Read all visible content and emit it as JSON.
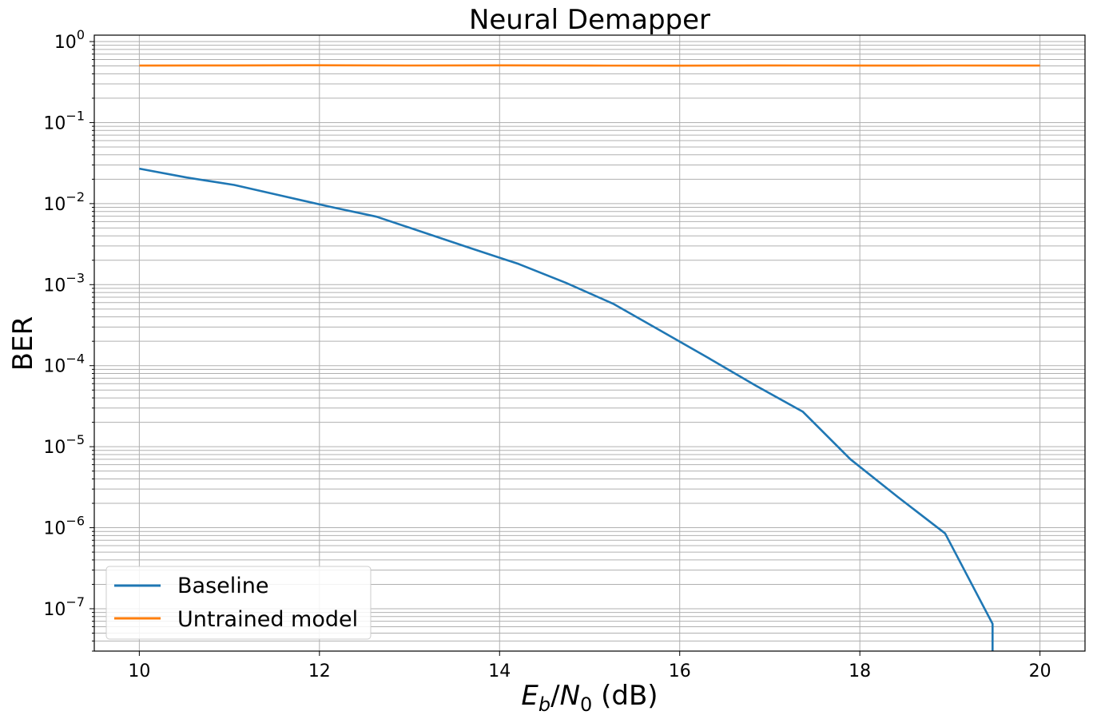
{
  "chart_data": {
    "type": "line",
    "title": "Neural Demapper",
    "xlabel": {
      "e": "E",
      "e_sub": "b",
      "slash": "/",
      "n": "N",
      "n_sub": "0",
      "unit": " (dB)"
    },
    "ylabel": "BER",
    "xlim": [
      9.5,
      20.5
    ],
    "ylim": [
      3e-08,
      1.2
    ],
    "yscale": "log",
    "grid": true,
    "legend_position": "lower-left",
    "x_ticks": [
      "10",
      "12",
      "14",
      "16",
      "18",
      "20"
    ],
    "y_ticks": [
      {
        "base": "10",
        "exp": "0"
      },
      {
        "base": "10",
        "exp": "−1"
      },
      {
        "base": "10",
        "exp": "−2"
      },
      {
        "base": "10",
        "exp": "−3"
      },
      {
        "base": "10",
        "exp": "−4"
      },
      {
        "base": "10",
        "exp": "−5"
      },
      {
        "base": "10",
        "exp": "−6"
      },
      {
        "base": "10",
        "exp": "−7"
      }
    ],
    "series": [
      {
        "name": "Baseline",
        "color": "#1f77b4",
        "x": [
          10.0,
          10.526,
          11.053,
          11.579,
          12.105,
          12.632,
          13.158,
          13.684,
          14.211,
          14.737,
          15.263,
          15.789,
          16.316,
          16.842,
          17.368,
          17.895,
          18.421,
          18.947,
          19.474
        ],
        "y": [
          0.027,
          0.021,
          0.017,
          0.0125,
          0.0092,
          0.0069,
          0.0044,
          0.0028,
          0.0018,
          0.00105,
          0.00058,
          0.00027,
          0.000125,
          5.7e-05,
          2.7e-05,
          7e-06,
          2.4e-06,
          8.5e-07,
          6.5e-08
        ]
      },
      {
        "name": "Untrained model",
        "color": "#ff7f0e",
        "x": [
          10.0,
          11.0,
          12.0,
          13.0,
          14.0,
          15.0,
          16.0,
          17.0,
          18.0,
          19.0,
          20.0
        ],
        "y": [
          0.505,
          0.507,
          0.51,
          0.506,
          0.509,
          0.505,
          0.504,
          0.508,
          0.505,
          0.506,
          0.505
        ]
      }
    ]
  }
}
